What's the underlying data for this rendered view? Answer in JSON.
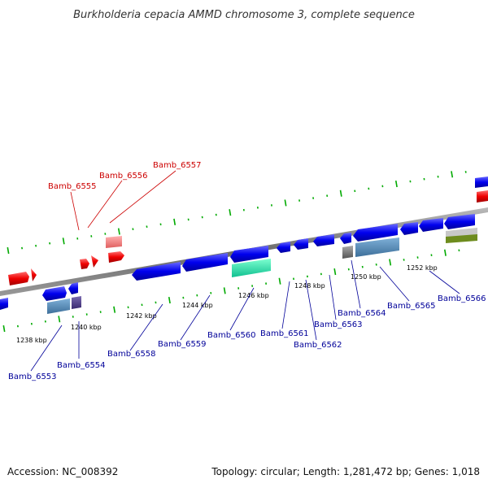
{
  "title": "Burkholderia cepacia AMMD chromosome 3, complete sequence",
  "footer": {
    "accession": "Accession: NC_008392",
    "summary": "Topology: circular; Length: 1,281,472 bp; Genes: 1,018"
  },
  "colors": {
    "forward_gene": "#ff0000",
    "reverse_gene": "#0000ff",
    "backbone": "#888888",
    "tick": "#00aa00",
    "label_forward": "#cc0000",
    "label_reverse": "#000099"
  },
  "scale_labels": [
    "1238 kbp",
    "1240 kbp",
    "1242 kbp",
    "1244 kbp",
    "1246 kbp",
    "1248 kbp",
    "1250 kbp",
    "1252 kbp"
  ],
  "gene_labels": {
    "top": [
      "Bamb_6555",
      "Bamb_6556",
      "Bamb_6557"
    ],
    "bottom": [
      "Bamb_6553",
      "Bamb_6554",
      "Bamb_6558",
      "Bamb_6559",
      "Bamb_6560",
      "Bamb_6561",
      "Bamb_6562",
      "Bamb_6563",
      "Bamb_6564",
      "Bamb_6565",
      "Bamb_6566"
    ]
  }
}
